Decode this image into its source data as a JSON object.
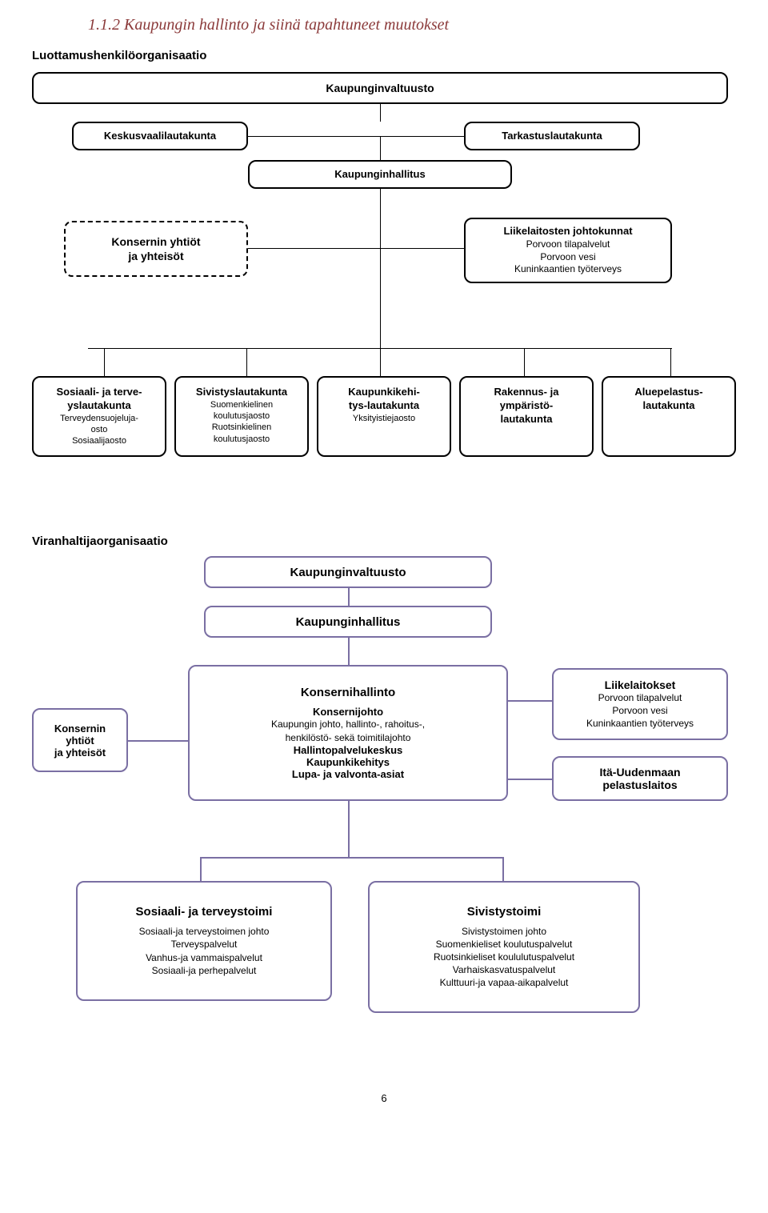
{
  "title": "1.1.2 Kaupungin hallinto ja siinä tapahtuneet muutokset",
  "subtitle1": "Luottamushenkilöorganisaatio",
  "diag1": {
    "top": "Kaupunginvaltuusto",
    "left2": "Keskusvaalilautakunta",
    "right2": "Tarkastuslautakunta",
    "mid": "Kaupunginhallitus",
    "dashed_t1": "Konsernin yhtiöt",
    "dashed_t2": "ja yhteisöt",
    "liik_t": "Liikelaitosten johtokunnat",
    "liik_s1": "Porvoon tilapalvelut",
    "liik_s2": "Porvoon vesi",
    "liik_s3": "Kuninkaantien työterveys"
  },
  "brow": [
    {
      "t": "Sosiaali- ja terve-\nyslautakunta",
      "s": "Terveydensuojeluja-\nosto\nSosiaalijaosto"
    },
    {
      "t": "Sivistyslautakunta",
      "s": "Suomenkielinen\nkoulutusjaosto\nRuotsinkielinen\nkoulutusjaosto"
    },
    {
      "t": "Kaupunkikehi-\ntys-lautakunta",
      "s": "Yksityistiejaosto"
    },
    {
      "t": "Rakennus- ja\nympäristö-\nlautakunta",
      "s": ""
    },
    {
      "t": "Aluepelastus-\nlautakunta",
      "s": ""
    }
  ],
  "subtitle2": "Viranhaltijaorganisaatio",
  "diag2": {
    "kv": "Kaupunginvaltuusto",
    "kh": "Kaupunginhallitus",
    "konsh_t": "Konsernihallinto",
    "konsh_b1": "Konsernijohto",
    "konsh_s1": "Kaupungin johto, hallinto-,  rahoitus-,\nhenkilöstö-  sekä  toimitilajohto",
    "konsh_b2": "Hallintopalvelukeskus",
    "konsh_b3": "Kaupunkikehitys",
    "konsh_b4": "Lupa- ja valvonta-asiat",
    "ky_t": "Konsernin\nyhtiöt\nja yhteisöt",
    "liik_t": "Liikelaitokset",
    "liik_s": "Porvoon tilapalvelut\nPorvoon vesi\nKuninkaantien työterveys",
    "ita": "Itä-Uudenmaan\npelastuslaitos",
    "sos_t": "Sosiaali- ja terveystoimi",
    "sos_s": "Sosiaali-ja terveystoimen johto\nTerveyspalvelut\nVanhus-ja vammaispalvelut\nSosiaali-ja perhepalvelut",
    "siv_t": "Sivistystoimi",
    "siv_s": "Sivistystoimen johto\nSuomenkieliset koulutuspalvelut\nRuotsinkieliset koululutuspalvelut\nVarhaiskasvatuspalvelut\nKulttuuri-ja vapaa-aikapalvelut"
  },
  "pagenum": "6",
  "colors": {
    "title": "#8b3a3a",
    "border1": "#000000",
    "border2": "#7a6fa3",
    "bg": "#ffffff"
  }
}
